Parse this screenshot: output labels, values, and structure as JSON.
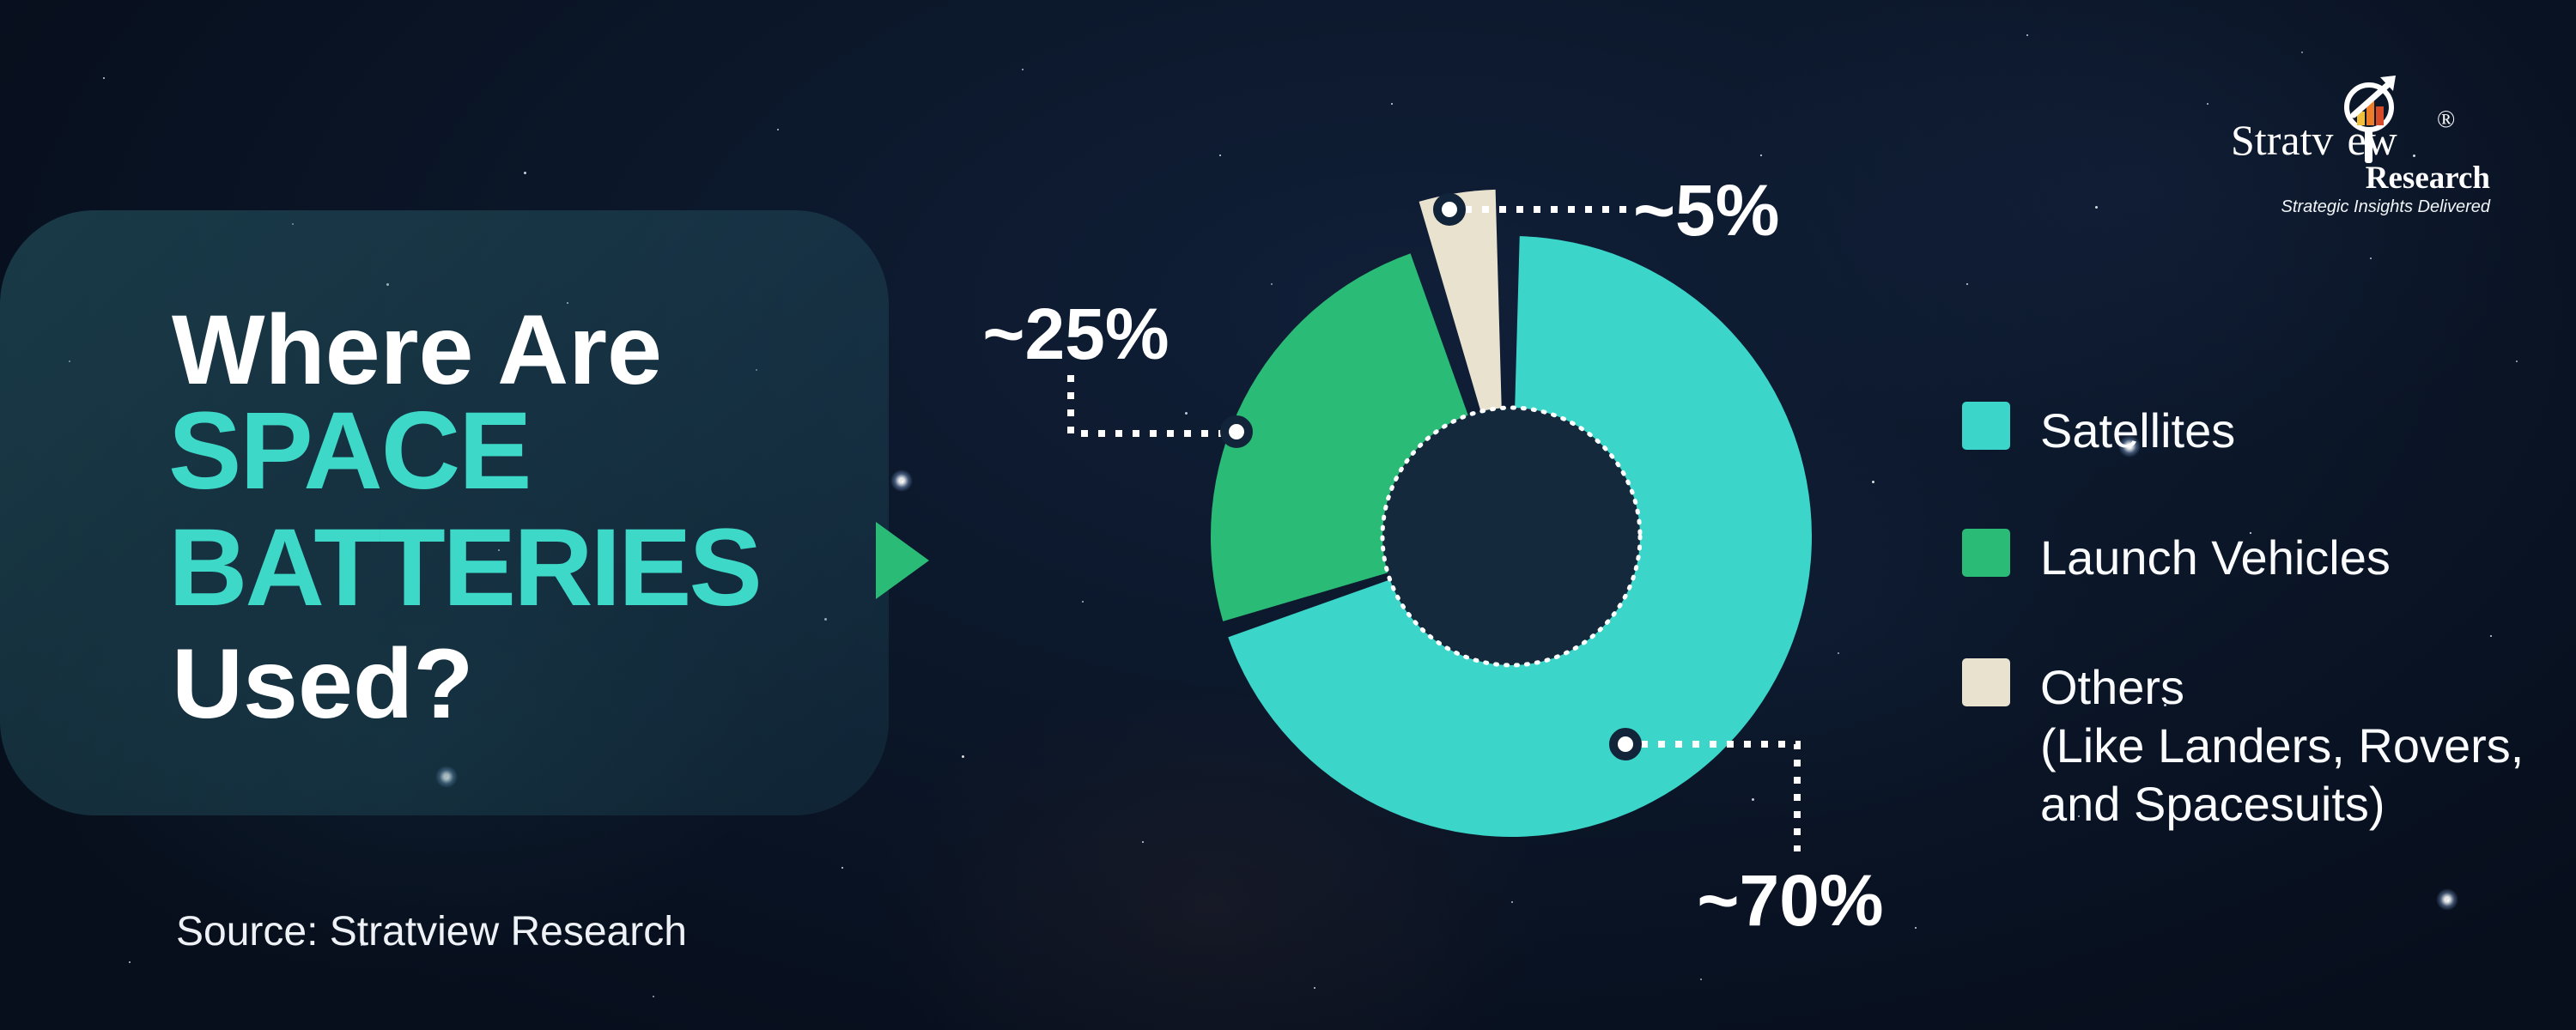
{
  "title": {
    "line1": "Where Are",
    "line2": "SPACE",
    "line3": "BATTERIES",
    "line4": "Used?"
  },
  "source_text": "Source: Stratview Research",
  "logo": {
    "word_part1": "Stratv",
    "word_part2": "ew",
    "registered_mark": "®",
    "subtitle": "Research",
    "tagline": "Strategic Insights Delivered"
  },
  "colors": {
    "accent_teal": "#3ed8c8",
    "slice_satellites": "#3bd6c9",
    "slice_launch_vehicles": "#2abc76",
    "slice_others": "#e9e2cf",
    "donut_hole": "#142a3c",
    "background_navy": "#0b1628",
    "pointer_green": "#2abc76"
  },
  "legend": {
    "items": [
      {
        "label": "Satellites",
        "color": "#3bd6c9"
      },
      {
        "label": "Launch Vehicles",
        "color": "#2abc76"
      },
      {
        "label": "Others",
        "color": "#e9e2cf",
        "sublines": [
          "(Like Landers, Rovers,",
          "and Spacesuits)"
        ]
      }
    ]
  },
  "chart_data": {
    "type": "pie",
    "donut": true,
    "start_angle_deg": 0,
    "direction": "clockwise",
    "legend_position": "right",
    "hole_ratio": 0.43,
    "categories": [
      "Satellites",
      "Launch Vehicles",
      "Others (Like Landers, Rovers, and Spacesuits)"
    ],
    "values": [
      70,
      25,
      5
    ],
    "value_labels": [
      "~70%",
      "~25%",
      "~5%"
    ],
    "series": [
      {
        "name": "Satellites",
        "pct": 70,
        "label": "~70%",
        "color": "#3bd6c9",
        "exploded": false
      },
      {
        "name": "Launch Vehicles",
        "pct": 25,
        "label": "~25%",
        "color": "#2abc76",
        "exploded": false
      },
      {
        "name": "Others",
        "pct": 5,
        "label": "~5%",
        "color": "#e9e2cf",
        "exploded": true
      }
    ]
  }
}
